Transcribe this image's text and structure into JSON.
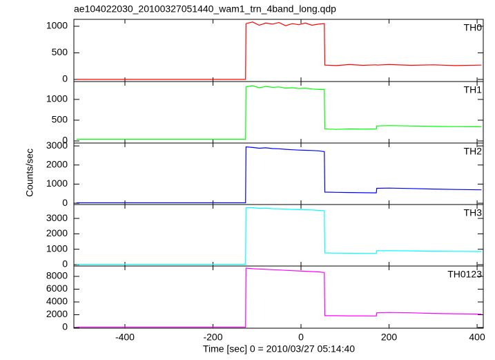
{
  "chart_data": [
    {
      "type": "line",
      "title": "ae104022030_20100327051440_wam1_trn_4band_long.qdp",
      "x": [
        -510,
        -300,
        -126,
        -125,
        -110,
        -95,
        -80,
        -65,
        -50,
        -35,
        -20,
        -5,
        10,
        25,
        40,
        53,
        54,
        80,
        110,
        140,
        171,
        172,
        200,
        250,
        300,
        350,
        410
      ],
      "series": [
        {
          "name": "TH0",
          "color": "#ff0000",
          "values": [
            0,
            0,
            0,
            1050,
            1080,
            1020,
            1060,
            1040,
            1070,
            1010,
            1050,
            1030,
            1060,
            1020,
            1040,
            1050,
            270,
            260,
            280,
            265,
            275,
            270,
            280,
            265,
            275,
            260,
            270
          ]
        }
      ],
      "xlim": [
        -516,
        414
      ],
      "ylim": [
        -40,
        1130
      ],
      "yticks": [
        0,
        500,
        1000
      ]
    },
    {
      "type": "line",
      "x": [
        -510,
        -300,
        -126,
        -125,
        -110,
        -95,
        -80,
        -65,
        -50,
        -35,
        -20,
        -5,
        10,
        25,
        40,
        53,
        54,
        80,
        110,
        140,
        171,
        172,
        200,
        250,
        300,
        350,
        410
      ],
      "series": [
        {
          "name": "TH1",
          "color": "#00ff00",
          "values": [
            40,
            40,
            40,
            1300,
            1330,
            1280,
            1310,
            1290,
            1300,
            1270,
            1280,
            1260,
            1270,
            1250,
            1240,
            1240,
            290,
            280,
            290,
            285,
            290,
            360,
            370,
            360,
            350,
            345,
            340
          ]
        }
      ],
      "xlim": [
        -516,
        414
      ],
      "ylim": [
        -50,
        1430
      ],
      "yticks": [
        0,
        500,
        1000
      ]
    },
    {
      "type": "line",
      "ylabel": "Counts/sec",
      "x": [
        -510,
        -300,
        -126,
        -125,
        -110,
        -95,
        -80,
        -65,
        -50,
        -35,
        -20,
        -5,
        10,
        25,
        40,
        53,
        54,
        80,
        110,
        140,
        171,
        172,
        200,
        250,
        300,
        350,
        410
      ],
      "series": [
        {
          "name": "TH2",
          "color": "#0000ff",
          "values": [
            20,
            20,
            20,
            2950,
            2920,
            2880,
            2900,
            2860,
            2850,
            2820,
            2800,
            2780,
            2770,
            2760,
            2740,
            2700,
            580,
            570,
            560,
            550,
            540,
            780,
            790,
            770,
            740,
            720,
            700
          ]
        }
      ],
      "xlim": [
        -516,
        414
      ],
      "ylim": [
        -70,
        3150
      ],
      "yticks": [
        0,
        1000,
        2000,
        3000
      ]
    },
    {
      "type": "line",
      "x": [
        -510,
        -300,
        -126,
        -125,
        -110,
        -95,
        -80,
        -65,
        -50,
        -35,
        -20,
        -5,
        10,
        25,
        40,
        53,
        54,
        80,
        110,
        140,
        171,
        172,
        200,
        250,
        300,
        350,
        410
      ],
      "series": [
        {
          "name": "TH3",
          "color": "#00ffff",
          "values": [
            20,
            20,
            20,
            3700,
            3700,
            3650,
            3660,
            3630,
            3620,
            3600,
            3580,
            3570,
            3560,
            3550,
            3520,
            3500,
            760,
            750,
            740,
            730,
            730,
            900,
            910,
            890,
            870,
            860,
            850
          ]
        }
      ],
      "xlim": [
        -516,
        414
      ],
      "ylim": [
        -90,
        3900
      ],
      "yticks": [
        0,
        1000,
        2000,
        3000
      ]
    },
    {
      "type": "line",
      "xlabel": "Time [sec] 0 = 2010/03/27 05:14:40",
      "x": [
        -510,
        -300,
        -126,
        -125,
        -110,
        -95,
        -80,
        -65,
        -50,
        -35,
        -20,
        -5,
        10,
        25,
        40,
        53,
        54,
        80,
        110,
        140,
        171,
        172,
        200,
        250,
        300,
        350,
        410
      ],
      "series": [
        {
          "name": "TH0123",
          "color": "#ff00ff",
          "values": [
            50,
            50,
            50,
            9300,
            9200,
            9150,
            9100,
            9050,
            9000,
            8950,
            8900,
            8850,
            8800,
            8750,
            8700,
            8600,
            1850,
            1850,
            1830,
            1820,
            1800,
            2300,
            2350,
            2300,
            2200,
            2150,
            2100
          ]
        }
      ],
      "xlim": [
        -516,
        414
      ],
      "ylim": [
        -110,
        9620
      ],
      "yticks": [
        0,
        2000,
        4000,
        6000,
        8000
      ],
      "xticks": [
        -400,
        -200,
        0,
        200,
        400
      ]
    }
  ]
}
